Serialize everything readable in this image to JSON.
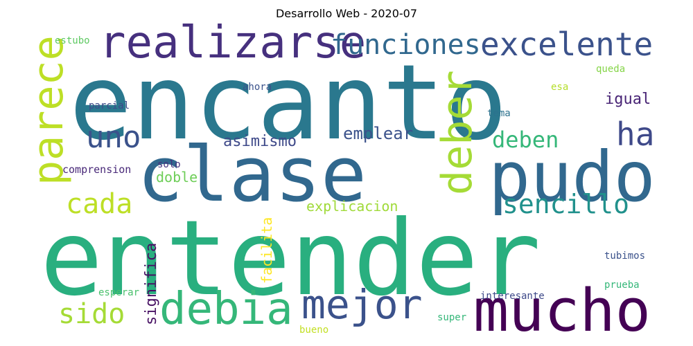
{
  "chart_data": {
    "type": "wordcloud",
    "title": "Desarrollo Web - 2020-07",
    "words": [
      {
        "text": "encanto",
        "color": "#2a788e"
      },
      {
        "text": "entender",
        "color": "#29af7f"
      },
      {
        "text": "clase",
        "color": "#31688e"
      },
      {
        "text": "pudo",
        "color": "#31688e"
      },
      {
        "text": "mucho",
        "color": "#440154"
      },
      {
        "text": "realizarse",
        "color": "#46307e"
      },
      {
        "text": "debia",
        "color": "#35b779"
      },
      {
        "text": "mejor",
        "color": "#3b528b"
      },
      {
        "text": "excelente",
        "color": "#3b528b"
      },
      {
        "text": "funciones",
        "color": "#31688e"
      },
      {
        "text": "parece",
        "color": "#bddf26"
      },
      {
        "text": "deber",
        "color": "#a5db36"
      },
      {
        "text": "uno",
        "color": "#3b528b"
      },
      {
        "text": "ha",
        "color": "#3e4989"
      },
      {
        "text": "cada",
        "color": "#bddf26"
      },
      {
        "text": "sencillo",
        "color": "#21918c"
      },
      {
        "text": "sido",
        "color": "#a5db36"
      },
      {
        "text": "deben",
        "color": "#35b779"
      },
      {
        "text": "asimismo",
        "color": "#3e4989"
      },
      {
        "text": "emplear",
        "color": "#3b528b"
      },
      {
        "text": "igual",
        "color": "#482475"
      },
      {
        "text": "explicacion",
        "color": "#a0da39"
      },
      {
        "text": "doble",
        "color": "#6ece58"
      },
      {
        "text": "significa",
        "color": "#471063"
      },
      {
        "text": "facilita",
        "color": "#fde725"
      },
      {
        "text": "comprension",
        "color": "#482878"
      },
      {
        "text": "solo",
        "color": "#46327e"
      },
      {
        "text": "parcial",
        "color": "#3e4a89"
      },
      {
        "text": "ahora",
        "color": "#3b528b"
      },
      {
        "text": "estubo",
        "color": "#5ec962"
      },
      {
        "text": "queda",
        "color": "#86d549"
      },
      {
        "text": "esa",
        "color": "#b5de2b"
      },
      {
        "text": "tema",
        "color": "#2c728e"
      },
      {
        "text": "tubimos",
        "color": "#3b528b"
      },
      {
        "text": "prueba",
        "color": "#35b779"
      },
      {
        "text": "interesante",
        "color": "#3e4989"
      },
      {
        "text": "super",
        "color": "#35b779"
      },
      {
        "text": "esperar",
        "color": "#4ac16d"
      },
      {
        "text": "bueno",
        "color": "#c2df23"
      }
    ]
  }
}
